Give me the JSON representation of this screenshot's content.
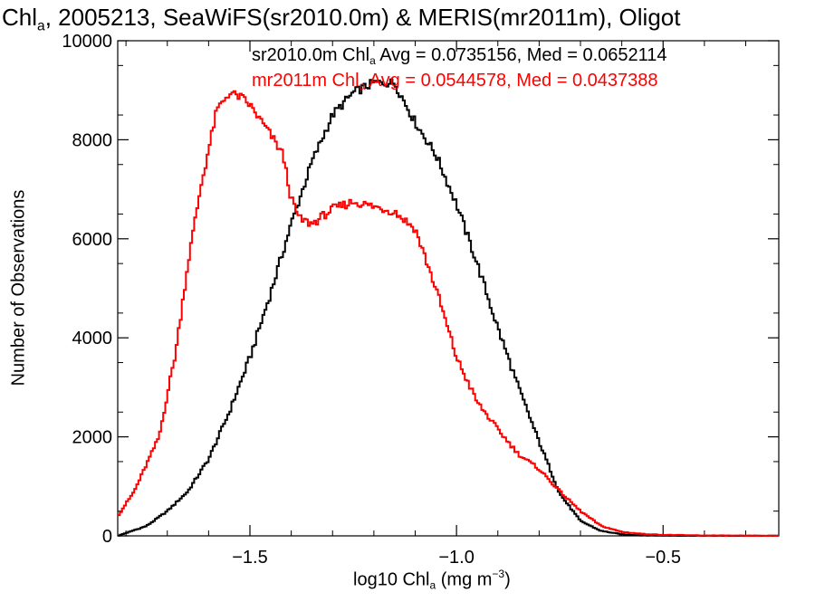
{
  "title": {
    "pre": "Chl",
    "sub": "a",
    "post": ", 2005213, SeaWiFS(sr2010.0m) & MERIS(mr2011m), Oligot"
  },
  "stats": [
    {
      "pre": "sr2010.0m Chl",
      "sub": "a",
      "post": " Avg = 0.0735156, Med = 0.0652114",
      "color": "#000000"
    },
    {
      "pre": "mr2011m Chl",
      "sub": "a",
      "post": " Avg = 0.0544578, Med = 0.0437388",
      "color": "#ff0000"
    }
  ],
  "xlabel": {
    "pre": "log10 Chl",
    "sub": "a",
    "mid": " (mg m",
    "sup": "−3",
    "post": ")"
  },
  "ylabel": "Number of Observations",
  "chart_data": {
    "type": "line",
    "xlim": [
      -1.82,
      -0.22
    ],
    "ylim": [
      0,
      10000
    ],
    "x_ticks": [
      -1.5,
      -1.0,
      -0.5
    ],
    "x_tick_labels": [
      "−1.5",
      "−1.0",
      "−0.5"
    ],
    "y_ticks": [
      0,
      2000,
      4000,
      6000,
      8000,
      10000
    ],
    "y_tick_labels": [
      "0",
      "2000",
      "4000",
      "6000",
      "8000",
      "10000"
    ],
    "grid": false,
    "series": [
      {
        "name": "sr2010.0m",
        "color": "#000000",
        "x": [
          -1.82,
          -1.75,
          -1.7,
          -1.65,
          -1.6,
          -1.55,
          -1.5,
          -1.45,
          -1.4,
          -1.35,
          -1.3,
          -1.25,
          -1.2,
          -1.15,
          -1.1,
          -1.05,
          -1.0,
          -0.95,
          -0.9,
          -0.85,
          -0.8,
          -0.75,
          -0.7,
          -0.65,
          -0.6,
          -0.55,
          -0.5,
          -0.45,
          -0.4,
          -0.3,
          -0.22
        ],
        "y": [
          0,
          200,
          500,
          900,
          1550,
          2500,
          3600,
          4900,
          6300,
          7550,
          8500,
          8950,
          9150,
          9150,
          8350,
          7700,
          6700,
          5500,
          4200,
          3000,
          1900,
          850,
          300,
          100,
          30,
          10,
          5,
          3,
          1,
          0,
          0
        ]
      },
      {
        "name": "mr2011m",
        "color": "#ff0000",
        "x": [
          -1.82,
          -1.78,
          -1.72,
          -1.68,
          -1.65,
          -1.62,
          -1.6,
          -1.58,
          -1.55,
          -1.52,
          -1.5,
          -1.45,
          -1.42,
          -1.4,
          -1.38,
          -1.35,
          -1.3,
          -1.25,
          -1.2,
          -1.15,
          -1.1,
          -1.05,
          -1.0,
          -0.95,
          -0.9,
          -0.85,
          -0.8,
          -0.75,
          -0.7,
          -0.65,
          -0.6,
          -0.55,
          -0.5,
          -0.4,
          -0.3,
          -0.22
        ],
        "y": [
          400,
          900,
          2000,
          3700,
          5500,
          7000,
          7800,
          8600,
          8950,
          8850,
          8700,
          8100,
          7700,
          6800,
          6400,
          6300,
          6600,
          6750,
          6650,
          6550,
          6200,
          5000,
          3600,
          2700,
          2150,
          1650,
          1350,
          900,
          500,
          200,
          80,
          40,
          20,
          8,
          3,
          0
        ]
      }
    ]
  }
}
